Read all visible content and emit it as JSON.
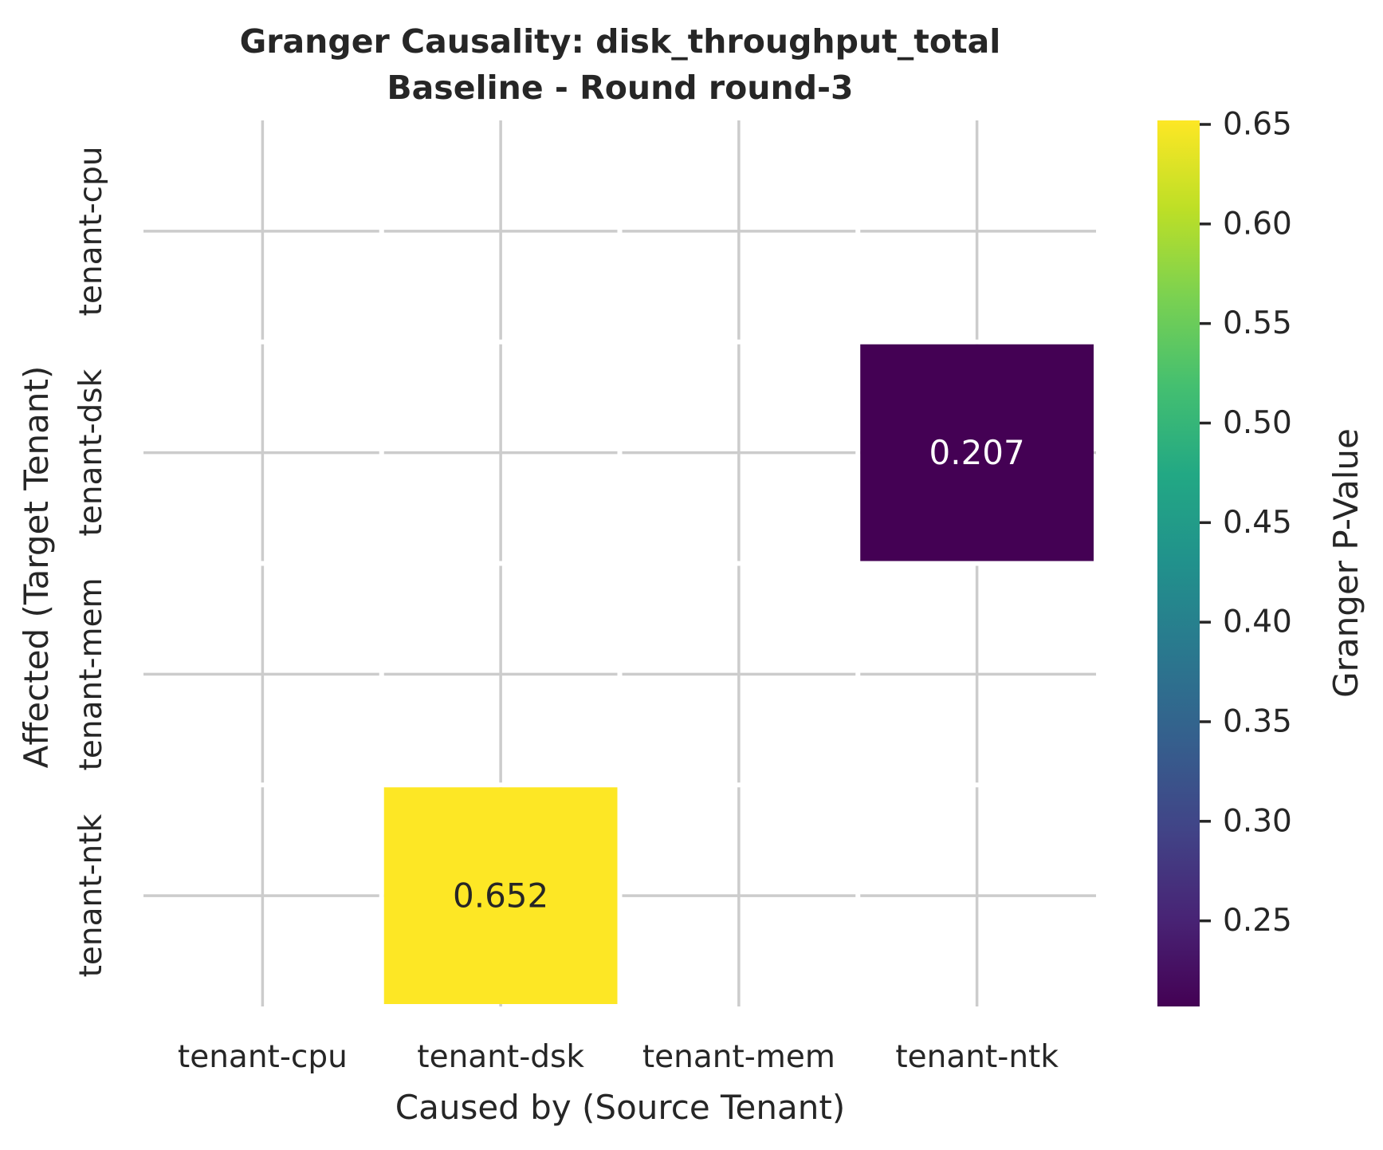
{
  "chart_data": {
    "type": "heatmap",
    "title": "Granger Causality: disk_throughput_total",
    "subtitle": "Baseline - Round round-3",
    "xlabel": "Caused by (Source Tenant)",
    "ylabel": "Affected (Target Tenant)",
    "x_categories": [
      "tenant-cpu",
      "tenant-dsk",
      "tenant-mem",
      "tenant-ntk"
    ],
    "y_categories": [
      "tenant-cpu",
      "tenant-dsk",
      "tenant-mem",
      "tenant-ntk"
    ],
    "cells": [
      {
        "x": "tenant-ntk",
        "y": "tenant-dsk",
        "value": 0.207,
        "label": "0.207"
      },
      {
        "x": "tenant-dsk",
        "y": "tenant-ntk",
        "value": 0.652,
        "label": "0.652"
      }
    ],
    "colormap": "viridis",
    "colorbar": {
      "label": "Granger P-Value",
      "range": [
        0.207,
        0.652
      ],
      "ticks": [
        0.25,
        0.3,
        0.35,
        0.4,
        0.45,
        0.5,
        0.55,
        0.6,
        0.65
      ],
      "tick_labels": [
        "0.25",
        "0.30",
        "0.35",
        "0.40",
        "0.45",
        "0.50",
        "0.55",
        "0.60",
        "0.65"
      ]
    },
    "grid": true
  }
}
